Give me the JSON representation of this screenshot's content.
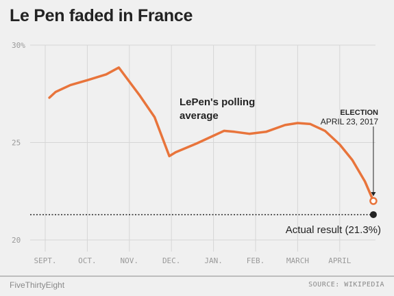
{
  "title": "Le Pen faded in France",
  "footer": {
    "left": "FiveThirtyEight",
    "right": "SOURCE: WIKIPEDIA"
  },
  "colors": {
    "line": "#e8743b",
    "background": "#f0f0f0",
    "grid": "#d6d6d6",
    "text": "#222222",
    "muted": "#999999"
  },
  "chart_data": {
    "type": "line",
    "title": "Le Pen faded in France",
    "xlabel": "",
    "ylabel": "",
    "x_ticks": [
      "SEPT.",
      "OCT.",
      "NOV.",
      "DEC.",
      "JAN.",
      "FEB.",
      "MARCH",
      "APRIL"
    ],
    "y_ticks": [
      {
        "value": 20,
        "label": "20"
      },
      {
        "value": 25,
        "label": "25"
      },
      {
        "value": 30,
        "label": "30%"
      }
    ],
    "ylim": [
      20,
      30
    ],
    "xlim": [
      0,
      7.9
    ],
    "grid": true,
    "series": [
      {
        "name": "LePen's polling average",
        "x": [
          0.1,
          0.25,
          0.6,
          1.0,
          1.45,
          1.75,
          2.25,
          2.6,
          2.95,
          3.1,
          3.6,
          4.0,
          4.25,
          4.5,
          4.85,
          5.25,
          5.7,
          6.0,
          6.3,
          6.65,
          7.0,
          7.3,
          7.6,
          7.8
        ],
        "y": [
          27.3,
          27.6,
          27.95,
          28.2,
          28.5,
          28.85,
          27.4,
          26.3,
          24.3,
          24.5,
          24.95,
          25.35,
          25.6,
          25.55,
          25.45,
          25.55,
          25.9,
          26.0,
          25.95,
          25.6,
          24.9,
          24.1,
          23.0,
          22.0
        ]
      }
    ],
    "annotations": {
      "series_label": [
        "LePen's polling",
        "average"
      ],
      "election": {
        "label": "ELECTION",
        "date": "APRIL 23, 2017",
        "x": 7.8,
        "y": 22.0
      },
      "actual_result": {
        "label": "Actual result (21.3%)",
        "value": 21.3
      }
    }
  }
}
